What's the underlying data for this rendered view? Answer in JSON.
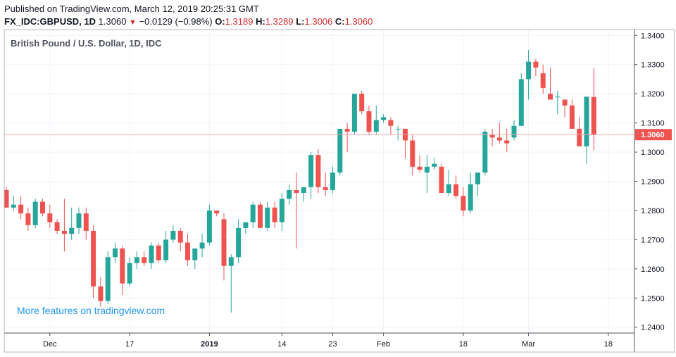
{
  "header": {
    "published": "Published on TradingView.com, March 12, 2019 20:25:31 GMT",
    "symbol": "FX_IDC:GBPUSD, 1D",
    "last": "1.3060",
    "change": "−0.0129 (−0.98%)",
    "o_label": "O:",
    "o_value": "1.3189",
    "h_label": "H:",
    "h_value": "1.3289",
    "l_label": "L:",
    "l_value": "1.3006",
    "c_label": "C:",
    "c_value": "1.3060"
  },
  "colors": {
    "up": "#26a69a",
    "down": "#ef5350",
    "grid": "#f0f3fa",
    "accent": "#2196f3"
  },
  "chart_data": {
    "type": "candlestick",
    "title": "British Pound / U.S. Dollar, 1D, IDC",
    "promo": "More features on tradingview.com",
    "ylim": [
      1.238,
      1.342
    ],
    "y_ticks": [
      "1.2400",
      "1.2500",
      "1.2600",
      "1.2700",
      "1.2800",
      "1.2900",
      "1.3000",
      "1.3100",
      "1.3200",
      "1.3300",
      "1.3400"
    ],
    "x_ticks": [
      {
        "label": "Dec",
        "index": 6,
        "bold": false
      },
      {
        "label": "17",
        "index": 17,
        "bold": false
      },
      {
        "label": "2019",
        "index": 28,
        "bold": true
      },
      {
        "label": "14",
        "index": 38,
        "bold": false
      },
      {
        "label": "23",
        "index": 45,
        "bold": false
      },
      {
        "label": "Feb",
        "index": 52,
        "bold": false
      },
      {
        "label": "18",
        "index": 63,
        "bold": false
      },
      {
        "label": "Mar",
        "index": 72,
        "bold": false
      },
      {
        "label": "18",
        "index": 83,
        "bold": false
      }
    ],
    "last_price": "1.3060",
    "last_value": 1.306,
    "candles": [
      [
        1.287,
        1.288,
        1.281,
        1.281
      ],
      [
        1.281,
        1.285,
        1.28,
        1.282
      ],
      [
        1.282,
        1.285,
        1.277,
        1.279
      ],
      [
        1.279,
        1.281,
        1.273,
        1.275
      ],
      [
        1.275,
        1.284,
        1.274,
        1.283
      ],
      [
        1.283,
        1.284,
        1.278,
        1.279
      ],
      [
        1.279,
        1.282,
        1.274,
        1.276
      ],
      [
        1.276,
        1.277,
        1.272,
        1.273
      ],
      [
        1.273,
        1.284,
        1.266,
        1.272
      ],
      [
        1.272,
        1.281,
        1.27,
        1.274
      ],
      [
        1.274,
        1.281,
        1.272,
        1.279
      ],
      [
        1.279,
        1.281,
        1.27,
        1.273
      ],
      [
        1.273,
        1.275,
        1.25,
        1.254
      ],
      [
        1.254,
        1.257,
        1.247,
        1.249
      ],
      [
        1.249,
        1.266,
        1.248,
        1.264
      ],
      [
        1.264,
        1.269,
        1.262,
        1.267
      ],
      [
        1.267,
        1.268,
        1.251,
        1.255
      ],
      [
        1.255,
        1.264,
        1.254,
        1.262
      ],
      [
        1.262,
        1.266,
        1.26,
        1.264
      ],
      [
        1.264,
        1.266,
        1.261,
        1.262
      ],
      [
        1.262,
        1.269,
        1.26,
        1.268
      ],
      [
        1.268,
        1.269,
        1.262,
        1.263
      ],
      [
        1.263,
        1.273,
        1.262,
        1.27
      ],
      [
        1.27,
        1.275,
        1.269,
        1.273
      ],
      [
        1.273,
        1.274,
        1.266,
        1.269
      ],
      [
        1.269,
        1.272,
        1.261,
        1.263
      ],
      [
        1.263,
        1.266,
        1.26,
        1.267
      ],
      [
        1.267,
        1.272,
        1.264,
        1.269
      ],
      [
        1.269,
        1.282,
        1.268,
        1.28
      ],
      [
        1.28,
        1.28,
        1.278,
        1.279
      ],
      [
        1.277,
        1.279,
        1.256,
        1.261
      ],
      [
        1.261,
        1.265,
        1.245,
        1.264
      ],
      [
        1.264,
        1.277,
        1.262,
        1.274
      ],
      [
        1.274,
        1.276,
        1.272,
        1.276
      ],
      [
        1.276,
        1.283,
        1.274,
        1.282
      ],
      [
        1.282,
        1.283,
        1.274,
        1.274
      ],
      [
        1.274,
        1.283,
        1.273,
        1.281
      ],
      [
        1.281,
        1.283,
        1.274,
        1.276
      ],
      [
        1.276,
        1.286,
        1.273,
        1.284
      ],
      [
        1.284,
        1.289,
        1.282,
        1.287
      ],
      [
        1.287,
        1.293,
        1.267,
        1.286
      ],
      [
        1.286,
        1.288,
        1.283,
        1.288
      ],
      [
        1.288,
        1.3,
        1.284,
        1.299
      ],
      [
        1.299,
        1.301,
        1.286,
        1.288
      ],
      [
        1.288,
        1.293,
        1.285,
        1.287
      ],
      [
        1.287,
        1.295,
        1.286,
        1.293
      ],
      [
        1.293,
        1.308,
        1.292,
        1.308
      ],
      [
        1.308,
        1.31,
        1.3,
        1.307
      ],
      [
        1.307,
        1.32,
        1.306,
        1.32
      ],
      [
        1.32,
        1.321,
        1.313,
        1.314
      ],
      [
        1.314,
        1.316,
        1.306,
        1.307
      ],
      [
        1.307,
        1.316,
        1.306,
        1.311
      ],
      [
        1.311,
        1.313,
        1.31,
        1.312
      ],
      [
        1.311,
        1.312,
        1.306,
        1.309
      ],
      [
        1.308,
        1.309,
        1.304,
        1.308
      ],
      [
        1.308,
        1.308,
        1.298,
        1.304
      ],
      [
        1.304,
        1.306,
        1.292,
        1.295
      ],
      [
        1.295,
        1.299,
        1.293,
        1.294
      ],
      [
        1.293,
        1.299,
        1.286,
        1.295
      ],
      [
        1.295,
        1.298,
        1.294,
        1.296
      ],
      [
        1.295,
        1.296,
        1.287,
        1.286
      ],
      [
        1.286,
        1.294,
        1.285,
        1.289
      ],
      [
        1.289,
        1.292,
        1.284,
        1.285
      ],
      [
        1.285,
        1.288,
        1.278,
        1.28
      ],
      [
        1.28,
        1.293,
        1.279,
        1.289
      ],
      [
        1.289,
        1.293,
        1.285,
        1.293
      ],
      [
        1.293,
        1.308,
        1.292,
        1.307
      ],
      [
        1.306,
        1.308,
        1.302,
        1.305
      ],
      [
        1.305,
        1.31,
        1.303,
        1.304
      ],
      [
        1.304,
        1.308,
        1.3,
        1.303
      ],
      [
        1.305,
        1.311,
        1.304,
        1.309
      ],
      [
        1.309,
        1.327,
        1.309,
        1.325
      ],
      [
        1.325,
        1.335,
        1.318,
        1.331
      ],
      [
        1.331,
        1.332,
        1.326,
        1.329
      ],
      [
        1.327,
        1.33,
        1.32,
        1.322
      ],
      [
        1.32,
        1.329,
        1.318,
        1.318
      ],
      [
        1.319,
        1.321,
        1.313,
        1.319
      ],
      [
        1.318,
        1.318,
        1.312,
        1.316
      ],
      [
        1.316,
        1.318,
        1.308,
        1.308
      ],
      [
        1.308,
        1.312,
        1.302,
        1.302
      ],
      [
        1.302,
        1.319,
        1.296,
        1.319
      ],
      [
        1.3189,
        1.3289,
        1.3006,
        1.306
      ]
    ]
  }
}
